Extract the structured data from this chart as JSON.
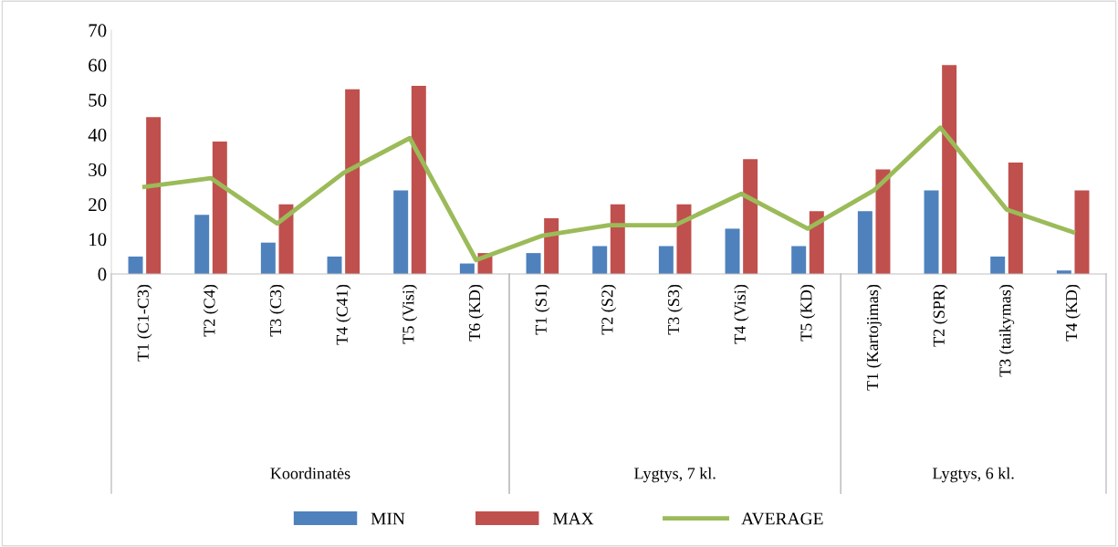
{
  "chart_data": {
    "type": "bar",
    "categories": [
      "T1 (C1-C3)",
      "T2 (C4)",
      "T3 (C3)",
      "T4 (C41)",
      "T5 (Visi)",
      "T6 (KD)",
      "T1 (S1)",
      "T2 (S2)",
      "T3 (S3)",
      "T4 (Visi)",
      "T5 (KD)",
      "T1 (Kartojimas)",
      "T2 (SPR)",
      "T3 (taikymas)",
      "T4 (KD)"
    ],
    "series": [
      {
        "name": "MIN",
        "color": "#4f81bd",
        "values": [
          5,
          17,
          9,
          5,
          24,
          3,
          6,
          8,
          8,
          13,
          8,
          18,
          24,
          5,
          1
        ]
      },
      {
        "name": "MAX",
        "color": "#c0504d",
        "values": [
          45,
          38,
          20,
          53,
          54,
          6,
          16,
          20,
          20,
          33,
          18,
          30,
          60,
          32,
          24
        ]
      },
      {
        "name": "AVERAGE",
        "type": "line",
        "color": "#9bbb59",
        "values": [
          25,
          27.5,
          14.5,
          29,
          39,
          4,
          11,
          14,
          14,
          23,
          13,
          24,
          42,
          18.5,
          12
        ]
      }
    ],
    "annotations": [
      "Koordinatės",
      "Lygtys, 7 kl.",
      "Lygtys, 6 kl."
    ],
    "ylim": [
      0,
      70
    ],
    "yticks": [
      0,
      10,
      20,
      30,
      40,
      50,
      60,
      70
    ],
    "grid": false,
    "legend": "bottom",
    "marker": "none",
    "line_style": "solid"
  }
}
